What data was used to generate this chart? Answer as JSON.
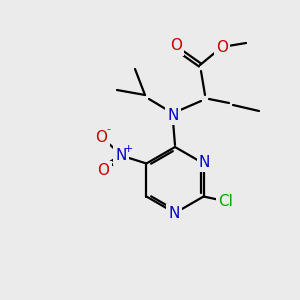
{
  "bg_color": "#ebebeb",
  "atom_colors": {
    "C": "#000000",
    "N": "#0000cc",
    "O": "#cc0000",
    "Cl": "#00aa00"
  },
  "bond_color": "#000000",
  "bond_width": 1.6,
  "font_size_atom": 11,
  "font_size_charge": 8
}
